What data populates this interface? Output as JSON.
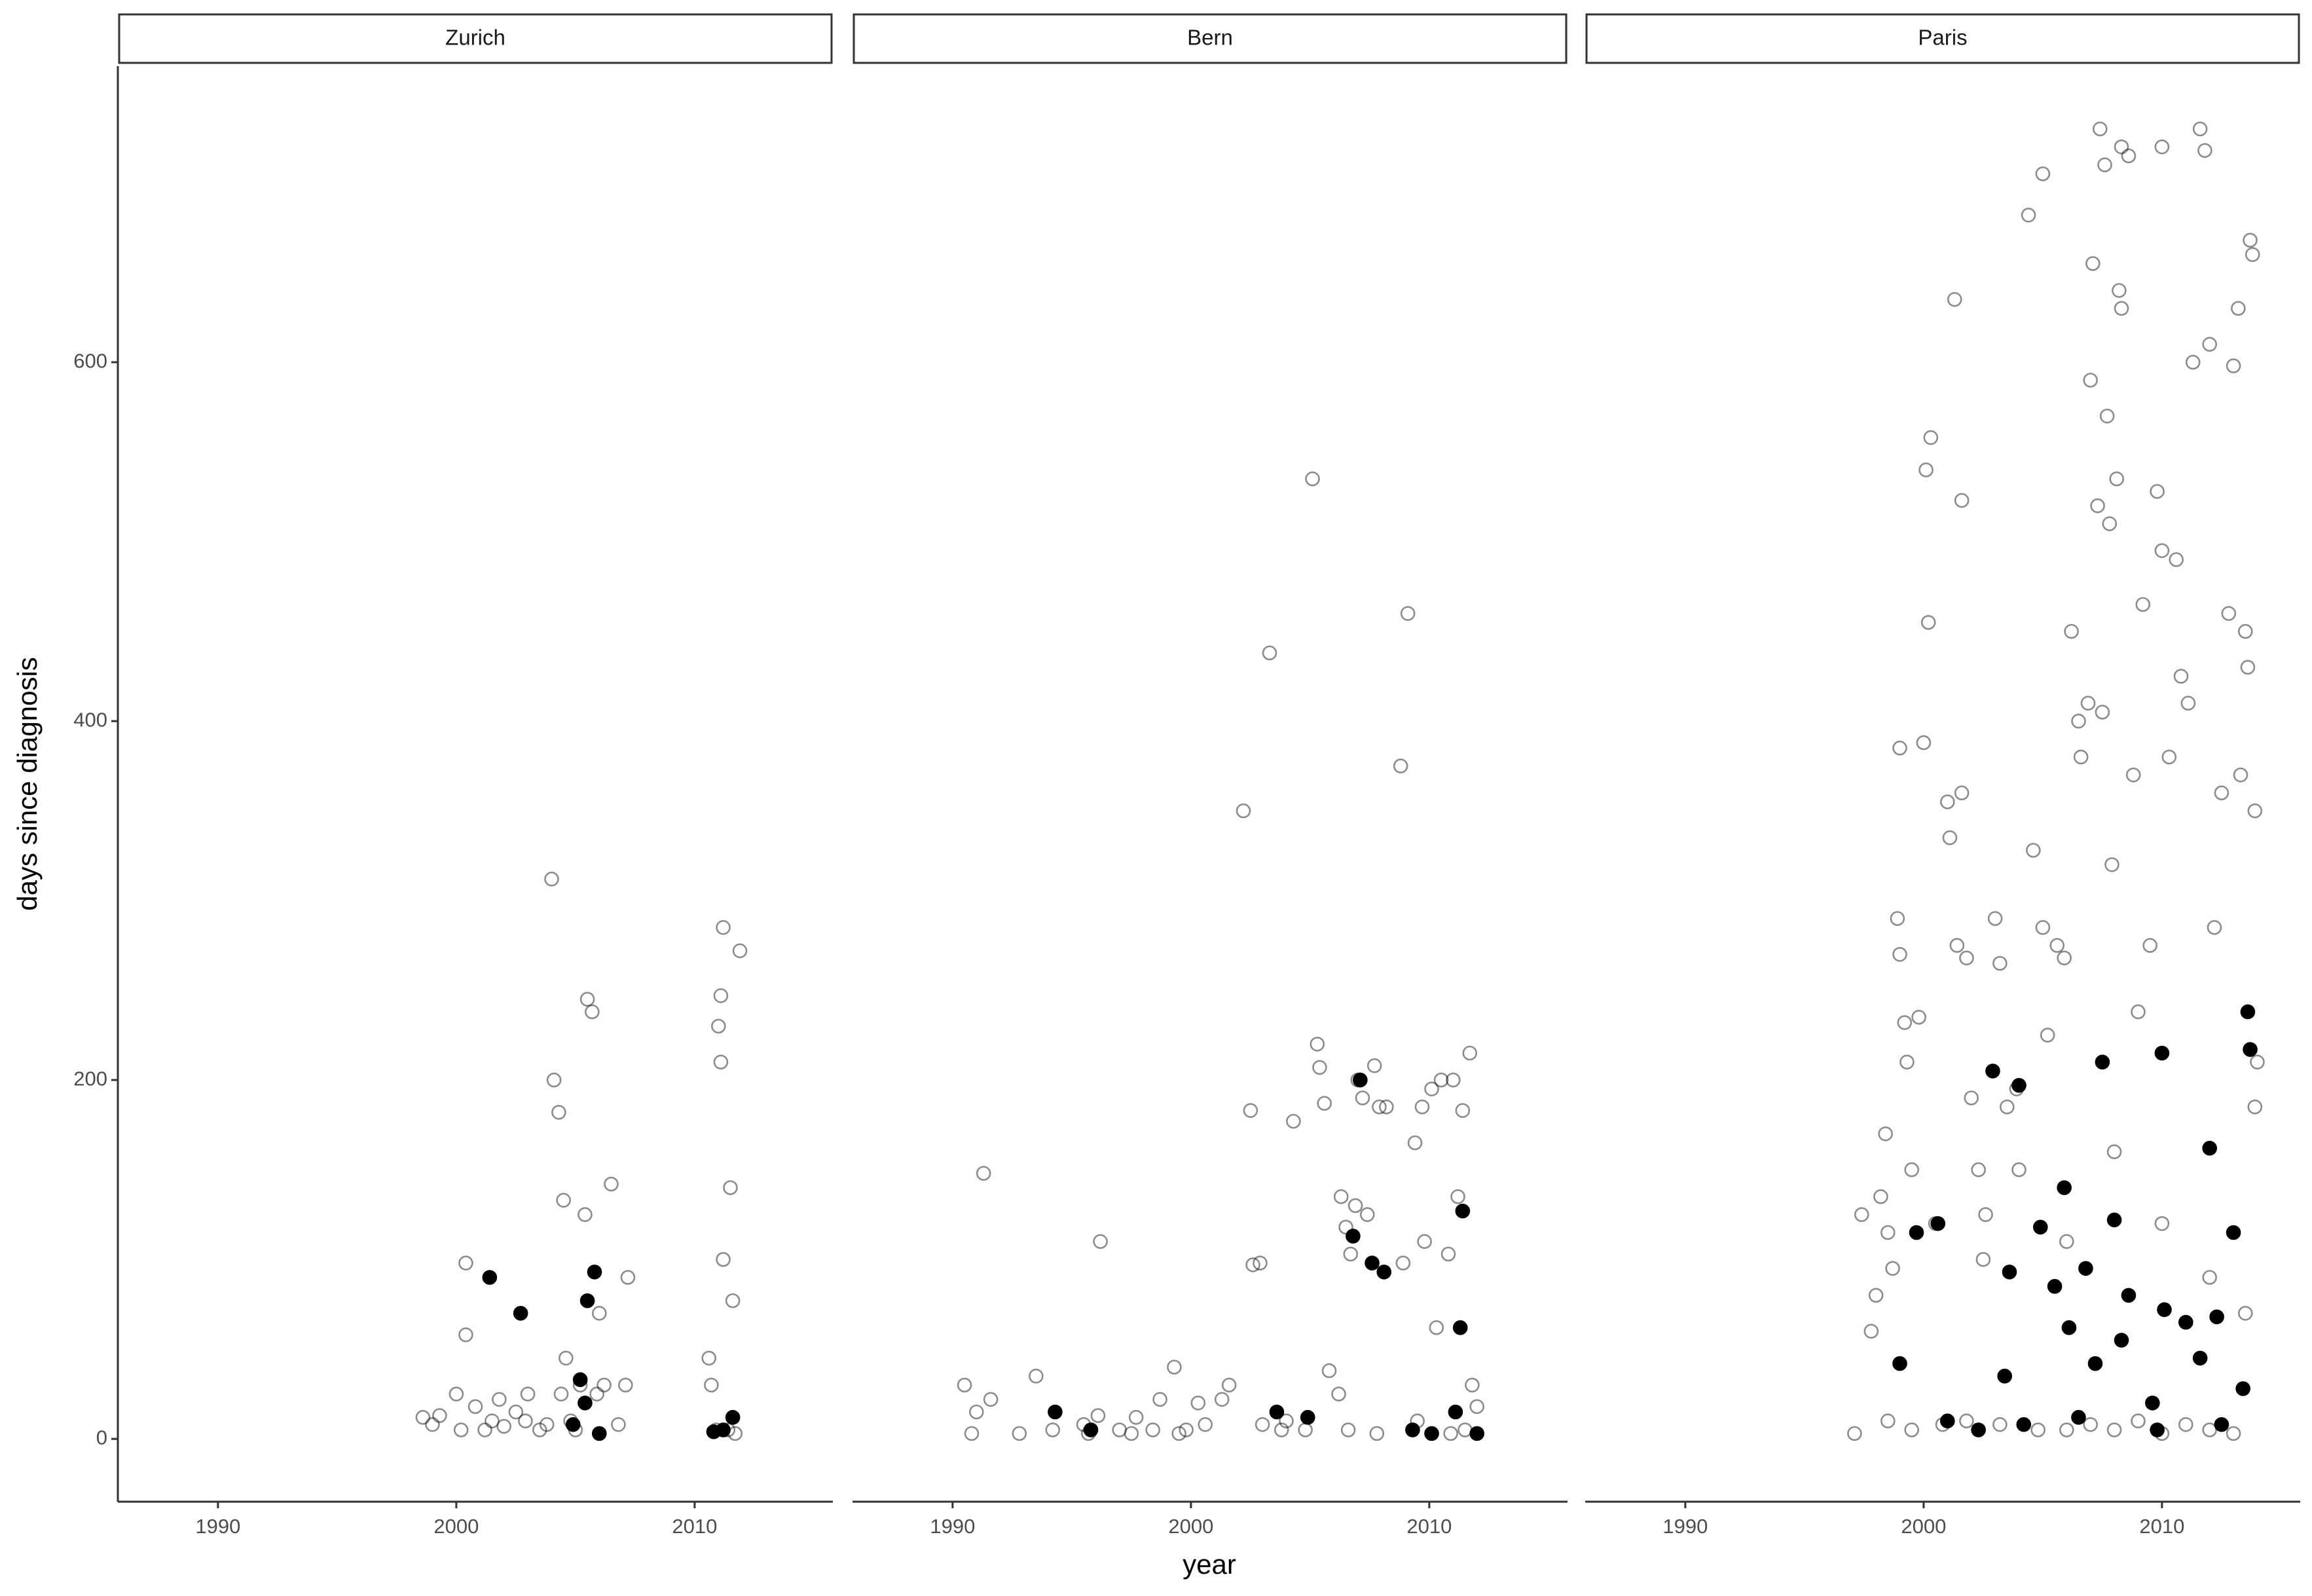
{
  "chart_data": [
    {
      "type": "scatter",
      "title": "Zurich",
      "y_label": "days since diagnosis",
      "xlim": [
        1985.8,
        2015.8
      ],
      "ylim": [
        -35,
        765
      ],
      "xticks": [
        1990,
        2000,
        2010
      ],
      "yticks": [
        0,
        200,
        400,
        600
      ],
      "series": [
        {
          "color": "#000000",
          "filled": false,
          "opacity": 0.45,
          "x": [
            1998.6,
            1999,
            1999.3,
            2000,
            2000.2,
            2000.4,
            2000.4,
            2000.8,
            2001.2,
            2001.5,
            2001.8,
            2002,
            2002.5,
            2002.9,
            2003,
            2003.5,
            2003.8,
            2004,
            2004.1,
            2004.3,
            2004.5,
            2004.6,
            2004.4,
            2004.8,
            2005,
            2005.2,
            2005.4,
            2005.5,
            2005.7,
            2005.9,
            2006,
            2006.2,
            2006.5,
            2006.8,
            2007.1,
            2007.2,
            2010.6,
            2010.7,
            2010.9,
            2011,
            2011.1,
            2011.2,
            2011.1,
            2011.2,
            2011.5,
            2011.6,
            2011.9,
            2011.4,
            2011.7
          ],
          "values": [
            12,
            8,
            13,
            25,
            5,
            98,
            58,
            18,
            5,
            10,
            22,
            7,
            15,
            10,
            25,
            5,
            8,
            312,
            200,
            182,
            133,
            45,
            25,
            10,
            5,
            30,
            125,
            245,
            238,
            25,
            70,
            30,
            142,
            8,
            30,
            90,
            45,
            30,
            5,
            230,
            247,
            285,
            210,
            100,
            140,
            77,
            272,
            5,
            3
          ]
        },
        {
          "color": "#000000",
          "filled": true,
          "opacity": 1,
          "x": [
            2001.4,
            2002.7,
            2005.5,
            2005.8,
            2005.2,
            2005.4,
            2004.9,
            2006,
            2011.6,
            2011.2,
            2010.8
          ],
          "values": [
            90,
            70,
            77,
            93,
            33,
            20,
            8,
            3,
            12,
            5,
            4
          ]
        }
      ]
    },
    {
      "type": "scatter",
      "title": "Bern",
      "x_label": "year",
      "xlim": [
        1985.8,
        2015.8
      ],
      "ylim": [
        -35,
        765
      ],
      "xticks": [
        1990,
        2000,
        2010
      ],
      "series": [
        {
          "color": "#000000",
          "filled": false,
          "opacity": 0.45,
          "x": [
            1990.5,
            1990.8,
            1991,
            1991.3,
            1991.6,
            1992.8,
            1993.5,
            1994.2,
            1995.5,
            1995.7,
            1996.1,
            1996.2,
            1997,
            1997.5,
            1997.7,
            1998.4,
            1998.7,
            1999.3,
            1999.5,
            1999.8,
            2000.3,
            2000.6,
            2001.3,
            2001.6,
            2002.2,
            2002.5,
            2002.6,
            2002.9,
            2003.3,
            2003,
            2003.8,
            2004.3,
            2004.8,
            2005.1,
            2005.3,
            2005.4,
            2005.6,
            2005.8,
            2006.2,
            2006.3,
            2006.5,
            2006.7,
            2006.9,
            2007,
            2007.2,
            2007.4,
            2007.7,
            2007.9,
            2008.2,
            2008.8,
            2009.1,
            2009.4,
            2009.7,
            2009.8,
            2010.1,
            2010.3,
            2010.5,
            2010.8,
            2011,
            2011.2,
            2011.4,
            2011.7,
            2011.8,
            2012,
            2008.9,
            2009.5,
            2010.9,
            2011.5,
            2006.6,
            2007.8,
            2004
          ],
          "values": [
            30,
            3,
            15,
            148,
            22,
            3,
            35,
            5,
            8,
            3,
            13,
            110,
            5,
            3,
            12,
            5,
            22,
            40,
            3,
            5,
            20,
            8,
            22,
            30,
            350,
            183,
            97,
            98,
            438,
            8,
            5,
            177,
            5,
            535,
            220,
            207,
            187,
            38,
            25,
            135,
            118,
            103,
            130,
            200,
            190,
            125,
            208,
            185,
            185,
            375,
            460,
            165,
            185,
            110,
            195,
            62,
            200,
            103,
            200,
            135,
            183,
            215,
            30,
            18,
            98,
            10,
            3,
            5,
            5,
            3,
            10
          ]
        },
        {
          "color": "#000000",
          "filled": true,
          "opacity": 1,
          "x": [
            1994.3,
            1995.8,
            2003.6,
            2004.9,
            2006.8,
            2007.1,
            2007.6,
            2008.1,
            2010.1,
            2011.3,
            2011.4,
            2011.1,
            2012,
            2009.3
          ],
          "values": [
            15,
            5,
            15,
            12,
            113,
            200,
            98,
            93,
            3,
            62,
            127,
            15,
            3,
            5
          ]
        }
      ]
    },
    {
      "type": "scatter",
      "title": "Paris",
      "xlim": [
        1985.8,
        2015.8
      ],
      "ylim": [
        -35,
        765
      ],
      "xticks": [
        1990,
        2000,
        2010
      ],
      "series": [
        {
          "color": "#000000",
          "filled": false,
          "opacity": 0.45,
          "x": [
            1997.1,
            1997.4,
            1997.8,
            1998,
            1998.2,
            1998.4,
            1998.5,
            1998.7,
            1998.9,
            1999,
            1999,
            1999.2,
            1999.3,
            1999.5,
            1999.8,
            2000,
            2000.1,
            2000.2,
            2000.3,
            2000.5,
            2001,
            2001.1,
            2001.3,
            2001.4,
            2001.6,
            2001.6,
            2001.8,
            2002,
            2002.3,
            2002.6,
            2003,
            2003.2,
            2003.5,
            2003.9,
            2004.4,
            2004.6,
            2005,
            2005,
            2005.2,
            2005.6,
            2005.9,
            2006.2,
            2006.5,
            2006.6,
            2006.9,
            2007,
            2007.1,
            2007.3,
            2007.4,
            2007.5,
            2007.6,
            2007.7,
            2007.8,
            2007.9,
            2008.2,
            2008.3,
            2008.1,
            2008.3,
            2008.6,
            2008.8,
            2009,
            2009.2,
            2009.5,
            2009.8,
            2010,
            2010,
            2010.3,
            2010.6,
            2010.8,
            2011.1,
            2011.3,
            2011.6,
            2011.8,
            2012,
            2012.2,
            2012.5,
            2012.8,
            2013,
            2013.2,
            2013.3,
            2013.5,
            2013.6,
            2013.7,
            2013.8,
            2013.9,
            2014,
            2013.9,
            1998.5,
            1999.5,
            2000.8,
            2001.8,
            2003.2,
            2004.8,
            2006,
            2007,
            2008,
            2009,
            2010,
            2011,
            2012,
            2013,
            2002.5,
            2004,
            2006,
            2008,
            2010,
            2012,
            2013.5
          ],
          "values": [
            3,
            125,
            60,
            80,
            135,
            170,
            115,
            95,
            290,
            385,
            270,
            232,
            210,
            150,
            235,
            388,
            540,
            455,
            558,
            120,
            355,
            335,
            635,
            275,
            360,
            523,
            268,
            190,
            150,
            125,
            290,
            265,
            185,
            195,
            682,
            328,
            705,
            285,
            225,
            275,
            268,
            450,
            400,
            380,
            410,
            590,
            655,
            520,
            730,
            405,
            710,
            570,
            510,
            320,
            640,
            630,
            535,
            720,
            715,
            370,
            238,
            465,
            275,
            528,
            720,
            495,
            380,
            490,
            425,
            410,
            600,
            730,
            718,
            610,
            285,
            360,
            460,
            598,
            630,
            370,
            450,
            430,
            668,
            660,
            350,
            210,
            185,
            10,
            5,
            8,
            10,
            8,
            5,
            5,
            8,
            5,
            10,
            3,
            8,
            5,
            3,
            100,
            150,
            110,
            160,
            120,
            90,
            70
          ]
        },
        {
          "color": "#000000",
          "filled": true,
          "opacity": 1,
          "x": [
            1999,
            1999.7,
            2000.6,
            2001,
            2002.3,
            2002.9,
            2003.4,
            2003.6,
            2004,
            2004.9,
            2005.5,
            2005.9,
            2006.1,
            2006.8,
            2007.2,
            2007.5,
            2008,
            2008.3,
            2008.6,
            2009.6,
            2010,
            2010.1,
            2011,
            2011.6,
            2012,
            2012.3,
            2013,
            2013.4,
            2013.6,
            2013.7,
            2012.5,
            2009.8,
            2006.5,
            2004.2
          ],
          "values": [
            42,
            115,
            120,
            10,
            5,
            205,
            35,
            93,
            197,
            118,
            85,
            140,
            62,
            95,
            42,
            210,
            122,
            55,
            80,
            20,
            215,
            72,
            65,
            45,
            162,
            68,
            115,
            28,
            238,
            217,
            8,
            5,
            12,
            8
          ]
        }
      ]
    }
  ]
}
